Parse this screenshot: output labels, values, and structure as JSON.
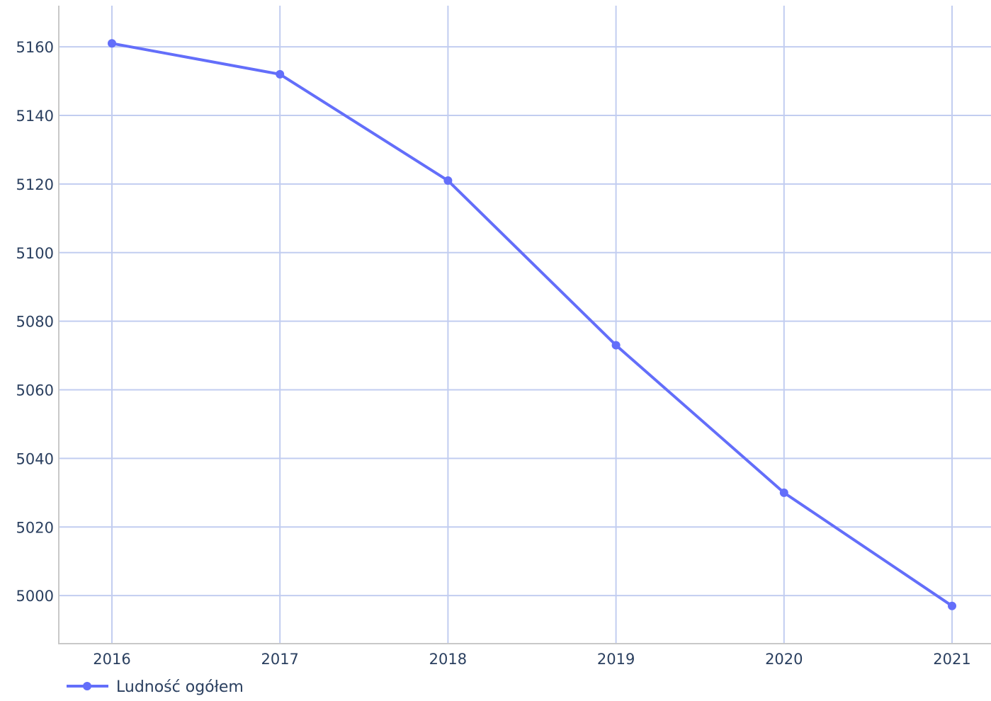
{
  "chart_data": {
    "type": "line",
    "x": [
      "2016",
      "2017",
      "2018",
      "2019",
      "2020",
      "2021"
    ],
    "series": [
      {
        "name": "Ludność ogółem",
        "values": [
          5161,
          5152,
          5121,
          5073,
          5030,
          4997
        ],
        "color": "#636efa"
      }
    ],
    "y_ticks": [
      5000,
      5020,
      5040,
      5060,
      5080,
      5100,
      5120,
      5140,
      5160
    ],
    "ylim": [
      4986,
      5172
    ],
    "grid": true,
    "grid_color": "#c2cdf0",
    "axis_color": "#c8c8c8",
    "text_color": "#2a3f5f",
    "legend_position": "bottom-left"
  }
}
